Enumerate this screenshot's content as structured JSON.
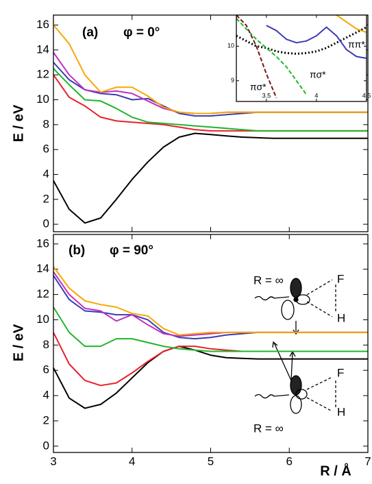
{
  "chart_data": [
    {
      "type": "line",
      "annotations": [
        "(a)",
        "φ = 0°"
      ],
      "ylabel": "E / eV",
      "x": [
        3,
        3.2,
        3.4,
        3.6,
        3.8,
        4,
        4.2,
        4.4,
        4.6,
        4.8,
        5,
        5.2,
        5.4,
        5.6,
        5.8,
        6,
        6.2,
        6.4,
        6.6,
        6.8,
        7
      ],
      "xlim": [
        3,
        7
      ],
      "xticks": [
        3,
        4,
        5,
        6,
        7
      ],
      "xtick_labels": false,
      "ylim": [
        -0.6,
        16.8
      ],
      "yticks": [
        0,
        2,
        4,
        6,
        8,
        10,
        12,
        14,
        16
      ],
      "series": [
        {
          "color": "#000000",
          "values": [
            3.5,
            1.2,
            0.1,
            0.5,
            2,
            3.6,
            5,
            6.2,
            7,
            7.3,
            7.2,
            7.1,
            7.0,
            6.95,
            6.9,
            6.9,
            6.9,
            6.9,
            6.9,
            6.9,
            6.9
          ]
        },
        {
          "color": "#e8202a",
          "values": [
            12,
            10.2,
            9.5,
            8.6,
            8.3,
            8.2,
            8.1,
            8.0,
            7.8,
            7.6,
            7.5,
            7.5,
            7.5,
            7.5,
            7.5,
            7.5,
            7.5,
            7.5,
            7.5,
            7.5,
            7.5
          ]
        },
        {
          "color": "#1fb52a",
          "values": [
            12.5,
            11.2,
            10.0,
            9.9,
            9.3,
            8.6,
            8.2,
            8.1,
            8.0,
            7.9,
            7.8,
            7.7,
            7.6,
            7.5,
            7.5,
            7.5,
            7.5,
            7.5,
            7.5,
            7.5,
            7.5
          ]
        },
        {
          "color": "#3a3ab8",
          "values": [
            13.0,
            11.6,
            10.8,
            10.5,
            10.4,
            10.0,
            10.1,
            9.5,
            8.9,
            8.7,
            8.7,
            8.8,
            8.9,
            9.0,
            9.0,
            9.0,
            9.0,
            9.0,
            9.0,
            9.0,
            9.0
          ]
        },
        {
          "color": "#c02fc0",
          "values": [
            13.8,
            12.0,
            10.8,
            10.6,
            10.7,
            10.5,
            9.9,
            9.3,
            9.0,
            8.9,
            8.9,
            9.0,
            9.0,
            9.0,
            9.0,
            9.0,
            9.0,
            9.0,
            9.0,
            9.0,
            9.0
          ]
        },
        {
          "color": "#f5a800",
          "values": [
            16.0,
            14.5,
            12.0,
            10.6,
            11.0,
            11.0,
            10.3,
            9.4,
            9.0,
            8.9,
            8.9,
            9.0,
            9.0,
            9.0,
            9.0,
            9.0,
            9.0,
            9.0,
            9.0,
            9.0,
            9.0
          ]
        }
      ]
    },
    {
      "type": "line",
      "annotations": [
        "(b)",
        "φ = 90°",
        "R = ∞",
        "F",
        "H",
        "R = ∞",
        "F",
        "H"
      ],
      "xlabel": "R / Å",
      "ylabel": "E / eV",
      "x": [
        3,
        3.2,
        3.4,
        3.6,
        3.8,
        4,
        4.2,
        4.4,
        4.6,
        4.8,
        5,
        5.2,
        5.4,
        5.6,
        5.8,
        6,
        6.2,
        6.4,
        6.6,
        6.8,
        7
      ],
      "xlim": [
        3,
        7
      ],
      "xticks": [
        3,
        4,
        5,
        6,
        7
      ],
      "xtick_labels": true,
      "ylim": [
        -0.5,
        16.75
      ],
      "yticks": [
        0,
        2,
        4,
        6,
        8,
        10,
        12,
        14,
        16
      ],
      "series": [
        {
          "color": "#000000",
          "values": [
            6.2,
            3.8,
            3.0,
            3.3,
            4.2,
            5.4,
            6.6,
            7.5,
            7.9,
            7.6,
            7.2,
            7.0,
            6.95,
            6.9,
            6.9,
            6.9,
            6.9,
            6.9,
            6.9,
            6.9,
            6.9
          ]
        },
        {
          "color": "#e8202a",
          "values": [
            9.0,
            6.5,
            5.2,
            4.8,
            5.0,
            5.8,
            6.7,
            7.5,
            7.9,
            7.9,
            7.7,
            7.6,
            7.5,
            7.5,
            7.5,
            7.5,
            7.5,
            7.5,
            7.5,
            7.5,
            7.5
          ]
        },
        {
          "color": "#1fb52a",
          "values": [
            11.0,
            9.0,
            7.9,
            7.9,
            8.5,
            8.5,
            8.2,
            7.9,
            7.7,
            7.6,
            7.5,
            7.5,
            7.5,
            7.5,
            7.5,
            7.5,
            7.5,
            7.5,
            7.5,
            7.5,
            7.5
          ]
        },
        {
          "color": "#3a3ab8",
          "values": [
            13.5,
            11.6,
            10.7,
            10.6,
            10.4,
            10.4,
            10.0,
            9.0,
            8.6,
            8.5,
            8.6,
            8.8,
            8.9,
            9.0,
            9.0,
            9.0,
            9.0,
            9.0,
            9.0,
            9.0,
            9.0
          ]
        },
        {
          "color": "#c02fc0",
          "values": [
            13.8,
            12.0,
            10.9,
            10.7,
            9.9,
            10.4,
            9.6,
            8.9,
            8.7,
            8.8,
            8.9,
            9.0,
            9.0,
            9.0,
            9.0,
            9.0,
            9.0,
            9.0,
            9.0,
            9.0,
            9.0
          ]
        },
        {
          "color": "#f5a800",
          "values": [
            14.2,
            12.5,
            11.5,
            11.2,
            11.0,
            10.5,
            10.3,
            9.3,
            8.8,
            8.9,
            9.0,
            9.0,
            9.0,
            9.0,
            9.0,
            9.0,
            9.0,
            9.0,
            9.0,
            9.0,
            9.0
          ]
        }
      ]
    },
    {
      "type": "line",
      "annotations": [
        "πσ*",
        "πσ*",
        "ππ*"
      ],
      "x": [
        3.2,
        3.3,
        3.4,
        3.5,
        3.6,
        3.7,
        3.8,
        3.9,
        4.0,
        4.1,
        4.2,
        4.3,
        4.4,
        4.5
      ],
      "xlim": [
        3.2,
        4.5
      ],
      "xticks": [
        3.5,
        4,
        4.5
      ],
      "xtick_labels": true,
      "ylim": [
        8.4,
        10.9
      ],
      "yticks": [
        9,
        10
      ],
      "series": [
        {
          "color": "#000000",
          "style": "dotted",
          "values": [
            10.3,
            10.15,
            10.0,
            9.95,
            9.85,
            9.8,
            9.78,
            9.8,
            9.85,
            9.95,
            10.1,
            10.25,
            10.4,
            10.55
          ]
        },
        {
          "color": "#1fb52a",
          "style": "dashed",
          "values": [
            10.8,
            10.5,
            10.2,
            9.95,
            9.7,
            9.4,
            9.0,
            8.6,
            null,
            null,
            null,
            null,
            null,
            null
          ]
        },
        {
          "color": "#7a1010",
          "style": "dashed",
          "values": [
            10.9,
            10.6,
            10.0,
            9.2,
            8.5,
            null,
            null,
            null,
            null,
            null,
            null,
            null,
            null,
            null
          ]
        },
        {
          "color": "#3a3ab8",
          "style": "solid",
          "values": [
            null,
            null,
            null,
            10.6,
            10.45,
            10.2,
            10.1,
            10.15,
            10.3,
            10.55,
            10.3,
            9.9,
            9.7,
            9.65
          ]
        },
        {
          "color": "#f5a800",
          "style": "solid",
          "values": [
            null,
            null,
            null,
            null,
            null,
            null,
            null,
            null,
            null,
            null,
            10.9,
            10.7,
            10.5,
            10.4
          ]
        }
      ]
    }
  ]
}
